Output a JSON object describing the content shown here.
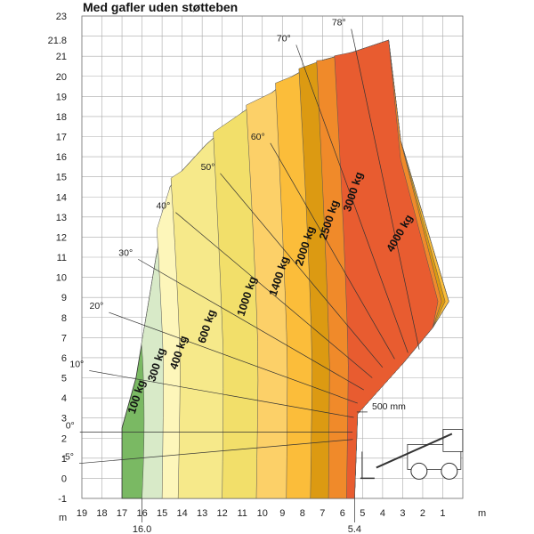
{
  "chart_data": {
    "type": "area",
    "title": "Med gafler uden støtteben",
    "xlabel": "m",
    "ylabel": "m",
    "xlim": [
      19,
      0
    ],
    "ylim": [
      -1,
      23
    ],
    "x_ticks": [
      19,
      18,
      17,
      16,
      15,
      14,
      13,
      12,
      11,
      10,
      9,
      8,
      7,
      6,
      5,
      4,
      3,
      2,
      1
    ],
    "y_ticks": [
      23,
      21.8,
      21,
      20,
      19,
      18,
      17,
      16,
      15,
      14,
      13,
      12,
      11,
      10,
      9,
      8,
      7,
      6,
      5,
      4,
      3,
      2,
      1,
      0,
      -1
    ],
    "grid": true,
    "extra_x_marks": [
      {
        "value": 16.0,
        "label": "16.0"
      },
      {
        "value": 5.4,
        "label": "5.4"
      }
    ],
    "boom_angles": [
      {
        "label": "-5°",
        "angle": -5
      },
      {
        "label": "0°",
        "angle": 0
      },
      {
        "label": "10°",
        "angle": 10
      },
      {
        "label": "20°",
        "angle": 20
      },
      {
        "label": "30°",
        "angle": 30
      },
      {
        "label": "40°",
        "angle": 40
      },
      {
        "label": "50°",
        "angle": 50
      },
      {
        "label": "60°",
        "angle": 60
      },
      {
        "label": "70°",
        "angle": 70
      },
      {
        "label": "78°",
        "angle": 78
      }
    ],
    "load_zones": [
      {
        "name": "100 kg",
        "color": "#7ab963",
        "max_reach": 17.0
      },
      {
        "name": "300 kg",
        "color": "#d8eac8",
        "max_reach": 16.0
      },
      {
        "name": "400 kg",
        "color": "#fdf6ba",
        "max_reach": 15.0
      },
      {
        "name": "600 kg",
        "color": "#f6e98a",
        "max_reach": 14.2
      },
      {
        "name": "1000 kg",
        "color": "#f2df6a",
        "max_reach": 12.0
      },
      {
        "name": "1400 kg",
        "color": "#fcd068",
        "max_reach": 10.3
      },
      {
        "name": "2000 kg",
        "color": "#fbbd3a",
        "max_reach": 8.8
      },
      {
        "name": "2500 kg",
        "color": "#dc9a12",
        "max_reach": 7.6
      },
      {
        "name": "3000 kg",
        "color": "#f08a2a",
        "max_reach": 6.7
      },
      {
        "name": "4000 kg",
        "color": "#e85c30",
        "max_reach": 5.8
      }
    ],
    "annotations": [
      "500 mm"
    ]
  }
}
